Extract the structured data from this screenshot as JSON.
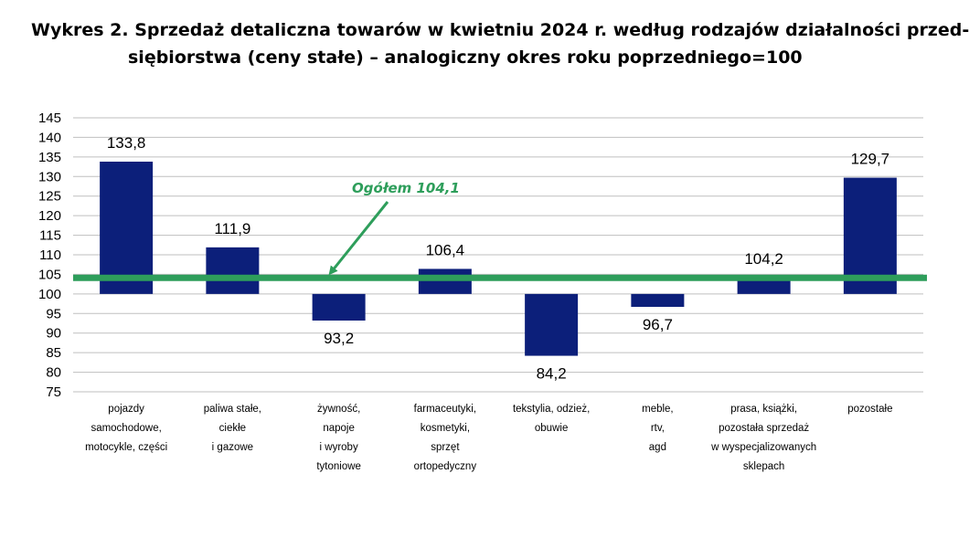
{
  "chart_data": {
    "type": "bar",
    "title_line1": "Wykres 2. Sprzedaż detaliczna towarów w kwietniu 2024 r. według rodzajów działalności przed-",
    "title_line2": "siębiorstwa (ceny stałe) – analogiczny okres roku poprzedniego=100",
    "categories": [
      [
        "pojazdy",
        "samochodowe,",
        "motocykle,  części"
      ],
      [
        "paliwa stałe,",
        "ciekłe",
        "i gazowe"
      ],
      [
        "żywność,",
        "napoje",
        "i wyroby",
        "tytoniowe"
      ],
      [
        "farmaceutyki,",
        "kosmetyki,",
        "sprzęt",
        "ortopedyczny"
      ],
      [
        "tekstylia, odzież,",
        "obuwie"
      ],
      [
        "meble,",
        "rtv,",
        "agd"
      ],
      [
        "prasa, książki,",
        "pozostała sprzedaż",
        "w wyspecjalizowanych",
        "sklepach"
      ],
      [
        "pozostałe"
      ]
    ],
    "values": [
      133.8,
      111.9,
      93.2,
      106.4,
      84.2,
      96.7,
      104.2,
      129.7
    ],
    "value_labels": [
      "133,8",
      "111,9",
      "93,2",
      "106,4",
      "84,2",
      "96,7",
      "104,2",
      "129,7"
    ],
    "baseline": 100,
    "ylim": [
      75,
      145
    ],
    "yticks": [
      75,
      80,
      85,
      90,
      95,
      100,
      105,
      110,
      115,
      120,
      125,
      130,
      135,
      140,
      145
    ],
    "grid": true,
    "reference_line": {
      "value": 104.1,
      "label": "Ogółem 104,1"
    },
    "colors": {
      "bar": "#0c1f7a",
      "reference": "#2e9e5b",
      "grid": "#bfbfbf"
    }
  }
}
